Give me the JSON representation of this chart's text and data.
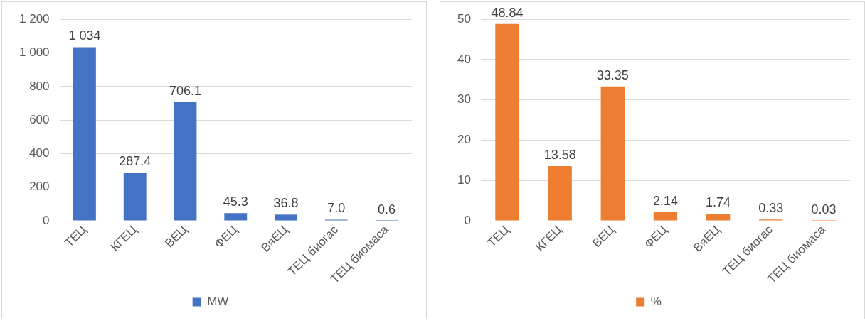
{
  "chart_data": [
    {
      "type": "bar",
      "categories": [
        "ТЕЦ",
        "КГЕЦ",
        "ВЕЦ",
        "ФЕЦ",
        "ВяЕЦ",
        "ТЕЦ биогас",
        "ТЕЦ биомаса"
      ],
      "series": [
        {
          "name": "MW",
          "color": "#4472c4",
          "values": [
            1034,
            287.4,
            706.1,
            45.3,
            36.8,
            7.0,
            0.6
          ],
          "value_labels": [
            "1 034",
            "287.4",
            "706.1",
            "45.3",
            "36.8",
            "7.0",
            "0.6"
          ]
        }
      ],
      "ylim": [
        0,
        1200
      ],
      "yticks": [
        0,
        200,
        400,
        600,
        800,
        {
          "value": 1000,
          "label": "1 000"
        },
        {
          "value": 1200,
          "label": "1 200"
        }
      ],
      "grid": "y",
      "legend": "bottom"
    },
    {
      "type": "bar",
      "categories": [
        "ТЕЦ",
        "КГЕЦ",
        "ВЕЦ",
        "ФЕЦ",
        "ВяЕЦ",
        "ТЕЦ биогас",
        "ТЕЦ биомаса"
      ],
      "series": [
        {
          "name": "%",
          "color": "#ed7d31",
          "values": [
            48.84,
            13.58,
            33.35,
            2.14,
            1.74,
            0.33,
            0.03
          ],
          "data_labels": true
        }
      ],
      "ylim": [
        0,
        50
      ],
      "yticks": [
        0,
        10,
        20,
        30,
        40,
        50
      ],
      "grid": "y",
      "legend": "bottom"
    }
  ]
}
